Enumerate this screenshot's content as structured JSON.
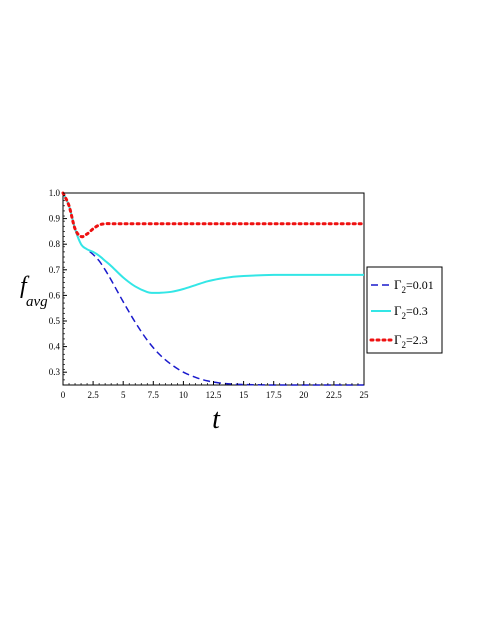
{
  "chart_data": {
    "type": "line",
    "xlabel": "t",
    "ylabel": "f",
    "ylabel_sub": "avg",
    "xlim": [
      0,
      25
    ],
    "ylim": [
      0.25,
      1.0
    ],
    "xticks": [
      0,
      2.5,
      5,
      7.5,
      10,
      12.5,
      15,
      17.5,
      20,
      22.5,
      25
    ],
    "xtick_labels": [
      "0",
      "2.5",
      "5",
      "7.5",
      "10",
      "12.5",
      "15",
      "17.5",
      "20",
      "22.5",
      "25"
    ],
    "yticks": [
      0.3,
      0.4,
      0.5,
      0.6,
      0.7,
      0.8,
      0.9,
      1.0
    ],
    "ytick_labels": [
      "0.3",
      "0.4",
      "0.5",
      "0.6",
      "0.7",
      "0.8",
      "0.9",
      "1.0"
    ],
    "grid": false,
    "legend_position": "right",
    "series": [
      {
        "name": "Γ",
        "name_sub": "2",
        "name_suffix": "=0.01",
        "color": "#1a1acc",
        "style": "dashed",
        "x": [
          0,
          0.5,
          1,
          1.5,
          2,
          2.5,
          3,
          3.5,
          4,
          5,
          6,
          7,
          8,
          9,
          10,
          11,
          12,
          13,
          14,
          15,
          17.5,
          20,
          22.5,
          25
        ],
        "y": [
          1.0,
          0.95,
          0.86,
          0.8,
          0.78,
          0.76,
          0.735,
          0.7,
          0.66,
          0.575,
          0.495,
          0.425,
          0.37,
          0.33,
          0.3,
          0.28,
          0.266,
          0.258,
          0.254,
          0.252,
          0.25,
          0.25,
          0.25,
          0.25
        ]
      },
      {
        "name": "Γ",
        "name_sub": "2",
        "name_suffix": "=0.3",
        "color": "#33e6e6",
        "style": "solid",
        "x": [
          0,
          0.5,
          1,
          1.5,
          2,
          2.5,
          3,
          3.5,
          4,
          5,
          6,
          7,
          7.5,
          8,
          9,
          10,
          11,
          12,
          13,
          14,
          15,
          17.5,
          20,
          22.5,
          25
        ],
        "y": [
          1.0,
          0.95,
          0.86,
          0.8,
          0.78,
          0.77,
          0.755,
          0.735,
          0.715,
          0.67,
          0.635,
          0.613,
          0.61,
          0.61,
          0.614,
          0.625,
          0.64,
          0.655,
          0.665,
          0.672,
          0.676,
          0.68,
          0.68,
          0.68,
          0.68
        ]
      },
      {
        "name": "Γ",
        "name_sub": "2",
        "name_suffix": "=2.3",
        "color": "#ee1111",
        "style": "dotted",
        "x": [
          0,
          0.5,
          1,
          1.5,
          2,
          2.5,
          3,
          3.5,
          4,
          5,
          7.5,
          10,
          15,
          20,
          25
        ],
        "y": [
          1.0,
          0.95,
          0.86,
          0.83,
          0.84,
          0.86,
          0.875,
          0.88,
          0.88,
          0.88,
          0.88,
          0.88,
          0.88,
          0.88,
          0.88
        ]
      }
    ]
  }
}
